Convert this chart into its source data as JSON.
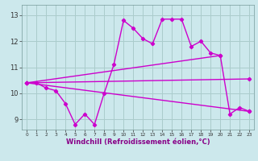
{
  "background_color": "#cce8ec",
  "grid_color": "#aacccc",
  "line_color": "#cc00cc",
  "xlabel": "Windchill (Refroidissement éolien,°C)",
  "xlim_left": -0.5,
  "xlim_right": 23.5,
  "ylim_bottom": 8.6,
  "ylim_top": 13.4,
  "yticks": [
    9,
    10,
    11,
    12,
    13
  ],
  "xticks": [
    0,
    1,
    2,
    3,
    4,
    5,
    6,
    7,
    8,
    9,
    10,
    11,
    12,
    13,
    14,
    15,
    16,
    17,
    18,
    19,
    20,
    21,
    22,
    23
  ],
  "line1_x": [
    0,
    1,
    2,
    3,
    4,
    5,
    6,
    7,
    8,
    9,
    10,
    11,
    12,
    13,
    14,
    15,
    16,
    17,
    18,
    19,
    20,
    21,
    22,
    23
  ],
  "line1_y": [
    10.4,
    10.4,
    10.2,
    10.1,
    9.6,
    8.8,
    9.2,
    8.8,
    10.0,
    11.1,
    12.8,
    12.5,
    12.1,
    11.9,
    12.85,
    12.85,
    12.85,
    11.8,
    12.0,
    11.55,
    11.45,
    9.2,
    9.45,
    9.3
  ],
  "line2_x": [
    0,
    20
  ],
  "line2_y": [
    10.4,
    11.45
  ],
  "line3_x": [
    0,
    23
  ],
  "line3_y": [
    10.4,
    9.3
  ],
  "line4_x": [
    0,
    23
  ],
  "line4_y": [
    10.4,
    10.55
  ],
  "lw": 1.0,
  "ms": 2.2,
  "xlabel_fontsize": 6.0,
  "xlabel_color": "#880088",
  "xtick_fontsize": 4.2,
  "ytick_fontsize": 6.0
}
